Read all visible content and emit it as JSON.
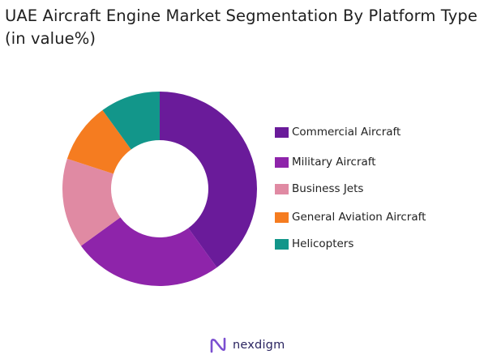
{
  "title": "UAE Aircraft Engine Market Segmentation By Platform Type (in value%)",
  "chart_data": {
    "type": "pie",
    "donut": true,
    "title": "UAE Aircraft Engine Market Segmentation By Platform Type (in value%)",
    "categories": [
      "Commercial Aircraft",
      "Military Aircraft",
      "Business Jets",
      "General Aviation Aircraft",
      "Helicopters"
    ],
    "values": [
      40,
      25,
      15,
      10,
      10
    ],
    "colors": [
      "#6a1b9a",
      "#8e24aa",
      "#e08aa3",
      "#f57c20",
      "#12968a"
    ],
    "legend_position": "right"
  },
  "legend": {
    "items": [
      {
        "label": "Commercial Aircraft",
        "color": "#6a1b9a"
      },
      {
        "label": "Military Aircraft",
        "color": "#8e24aa"
      },
      {
        "label": "Business Jets",
        "color": "#e08aa3"
      },
      {
        "label": "General Aviation Aircraft",
        "color": "#f57c20"
      },
      {
        "label": "Helicopters",
        "color": "#12968a"
      }
    ]
  },
  "brand": {
    "name": "nexdigm",
    "logo_icon": "nexdigm-logo-icon",
    "color": "#2a2460"
  }
}
